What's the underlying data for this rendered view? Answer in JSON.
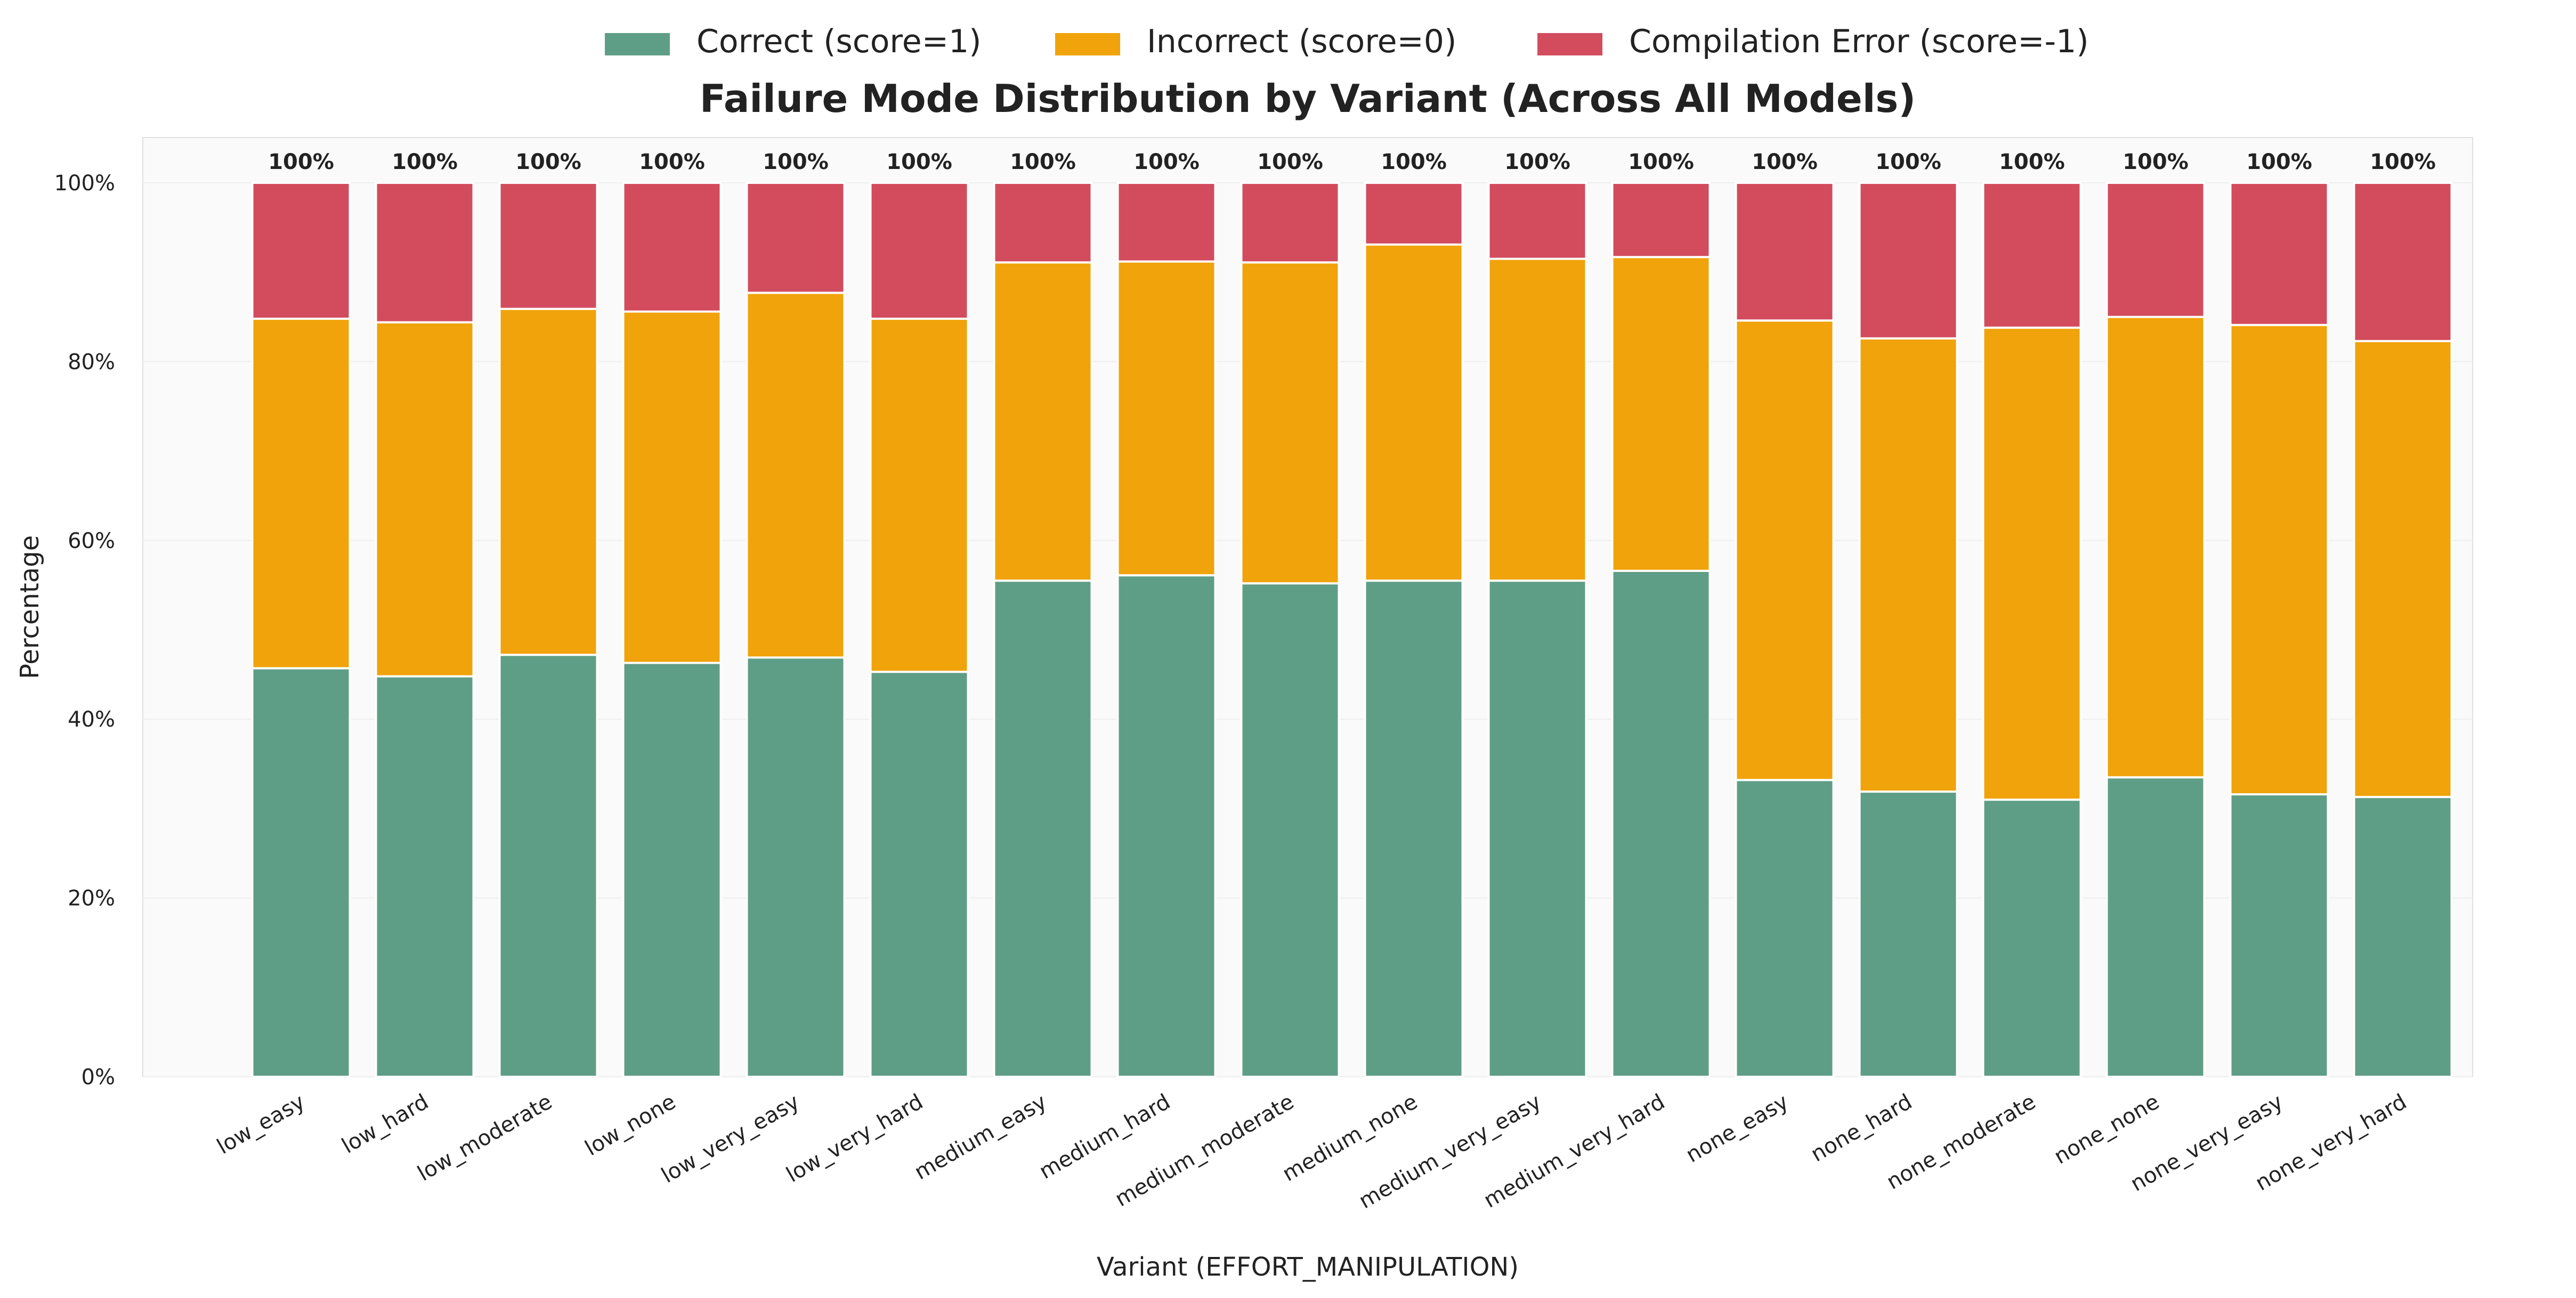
{
  "chart_data": {
    "type": "bar",
    "stacked": true,
    "title": "Failure Mode Distribution by Variant (Across All Models)",
    "xlabel": "Variant (EFFORT_MANIPULATION)",
    "ylabel": "Percentage",
    "ylim": [
      0,
      100
    ],
    "yticks": [
      "0%",
      "20%",
      "40%",
      "60%",
      "80%",
      "100%"
    ],
    "grid": true,
    "legend_position": "top-center",
    "categories": [
      "low_easy",
      "low_hard",
      "low_moderate",
      "low_none",
      "low_very_easy",
      "low_very_hard",
      "medium_easy",
      "medium_hard",
      "medium_moderate",
      "medium_none",
      "medium_very_easy",
      "medium_very_hard",
      "none_easy",
      "none_hard",
      "none_moderate",
      "none_none",
      "none_very_easy",
      "none_very_hard"
    ],
    "series": [
      {
        "name": "Correct (score=1)",
        "color": "#5f9e86",
        "values": [
          45.7,
          44.8,
          47.2,
          46.3,
          46.9,
          45.3,
          55.5,
          56.1,
          55.2,
          55.5,
          55.5,
          56.6,
          33.2,
          31.9,
          31.0,
          33.5,
          31.6,
          31.3
        ]
      },
      {
        "name": "Incorrect (score=0)",
        "color": "#f0a30a",
        "values": [
          39.1,
          39.6,
          38.7,
          39.3,
          40.8,
          39.5,
          35.6,
          35.1,
          35.9,
          37.6,
          36.0,
          35.1,
          51.4,
          50.7,
          52.8,
          51.5,
          52.5,
          51.0
        ]
      },
      {
        "name": "Compilation Error (score=-1)",
        "color": "#d24c5e",
        "values": [
          15.2,
          15.6,
          14.1,
          14.4,
          12.3,
          15.2,
          8.9,
          8.8,
          8.9,
          6.9,
          8.5,
          8.3,
          15.4,
          17.4,
          16.2,
          15.0,
          15.9,
          17.7
        ]
      }
    ],
    "total_labels": [
      "100%",
      "100%",
      "100%",
      "100%",
      "100%",
      "100%",
      "100%",
      "100%",
      "100%",
      "100%",
      "100%",
      "100%",
      "100%",
      "100%",
      "100%",
      "100%",
      "100%",
      "100%"
    ]
  }
}
